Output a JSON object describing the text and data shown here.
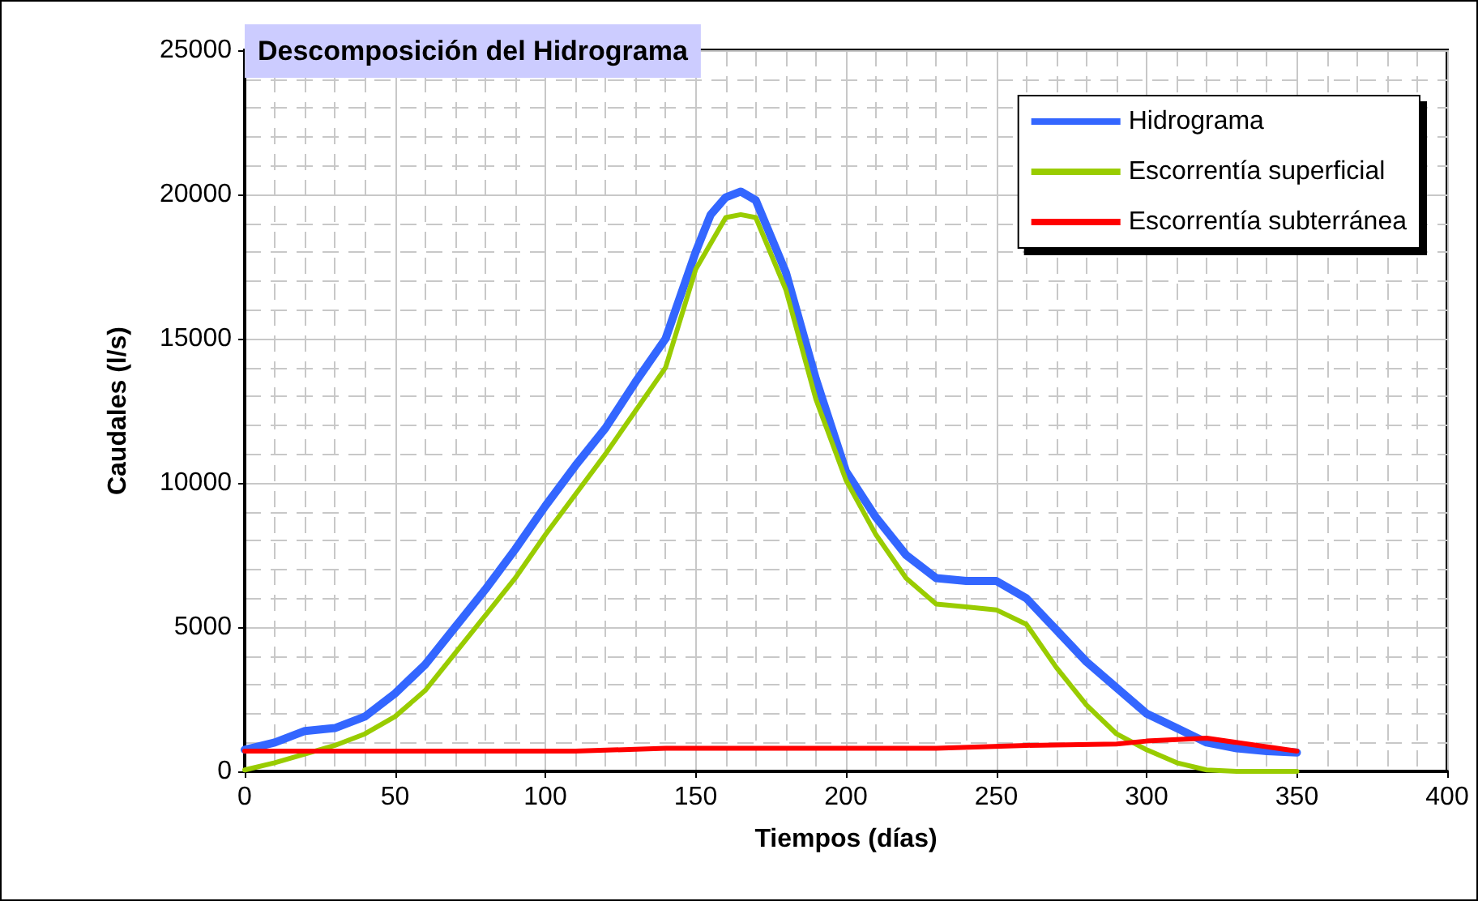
{
  "chart_data": {
    "type": "line",
    "title": "Descomposición del Hidrograma",
    "xlabel": "Tiempos (días)",
    "ylabel": "Caudales (l/s)",
    "xlim": [
      0,
      400
    ],
    "xticks": [
      0,
      50,
      100,
      150,
      200,
      250,
      300,
      350,
      400
    ],
    "ylim": [
      0,
      25000
    ],
    "yticks": [
      0,
      5000,
      10000,
      15000,
      20000,
      25000
    ],
    "grid": true,
    "legend": "top right",
    "marker": "none",
    "line_style": "solid",
    "series": [
      {
        "name": "Hidrograma",
        "color": "#3366ff",
        "x": [
          0,
          10,
          20,
          30,
          40,
          50,
          60,
          70,
          80,
          90,
          100,
          110,
          120,
          130,
          140,
          150,
          155,
          160,
          165,
          170,
          180,
          190,
          200,
          210,
          220,
          230,
          240,
          250,
          260,
          270,
          280,
          290,
          300,
          310,
          320,
          330,
          340,
          350
        ],
        "values": [
          750,
          1000,
          1400,
          1500,
          1900,
          2700,
          3700,
          5000,
          6300,
          7700,
          9200,
          10600,
          11900,
          13500,
          15000,
          18000,
          19300,
          19900,
          20100,
          19800,
          17300,
          13600,
          10400,
          8800,
          7500,
          6700,
          6600,
          6600,
          6000,
          4900,
          3800,
          2900,
          2000,
          1500,
          1000,
          800,
          700,
          650
        ]
      },
      {
        "name": "Escorrentía superficial",
        "color": "#99cc00",
        "x": [
          0,
          10,
          20,
          30,
          40,
          50,
          60,
          70,
          80,
          90,
          100,
          110,
          120,
          130,
          140,
          150,
          160,
          165,
          170,
          180,
          190,
          200,
          210,
          220,
          230,
          240,
          250,
          260,
          270,
          280,
          290,
          300,
          310,
          320,
          330,
          340,
          350
        ],
        "values": [
          50,
          300,
          600,
          900,
          1300,
          1900,
          2800,
          4100,
          5400,
          6700,
          8200,
          9600,
          11000,
          12500,
          14000,
          17400,
          19200,
          19300,
          19200,
          16700,
          12900,
          10100,
          8200,
          6700,
          5800,
          5700,
          5600,
          5100,
          3600,
          2300,
          1300,
          750,
          300,
          50,
          0,
          0,
          0
        ]
      },
      {
        "name": "Escorrentía subterránea",
        "color": "#ff0000",
        "x": [
          0,
          50,
          110,
          140,
          230,
          260,
          290,
          300,
          320,
          350
        ],
        "values": [
          700,
          700,
          700,
          800,
          800,
          900,
          950,
          1050,
          1150,
          700
        ]
      }
    ]
  }
}
